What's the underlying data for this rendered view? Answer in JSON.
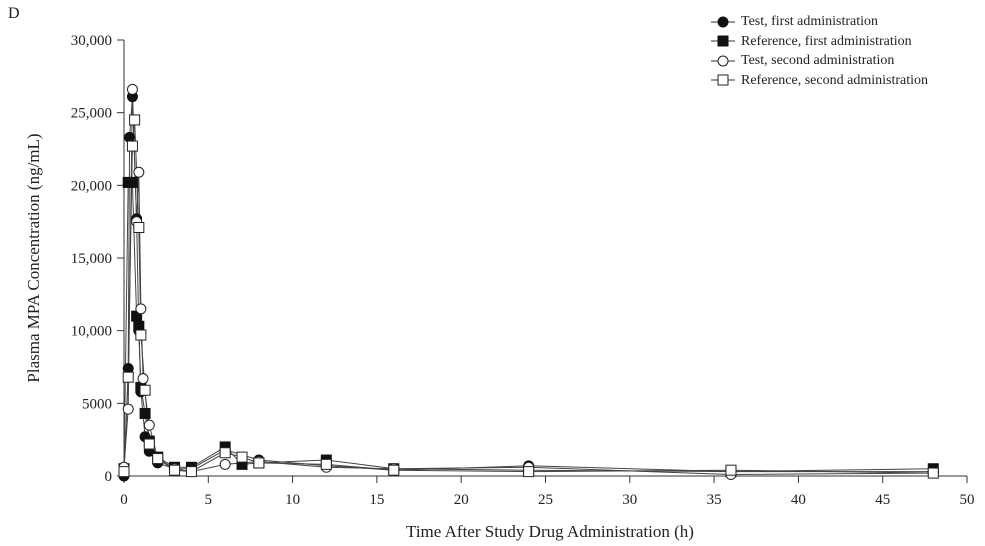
{
  "panel_label": "D",
  "chart_data": {
    "type": "line",
    "xlabel": "Time After Study Drug Administration (h)",
    "ylabel": "Plasma MPA Concentration (ng/mL)",
    "xlim": [
      0,
      50
    ],
    "ylim": [
      0,
      30000
    ],
    "x_ticks": [
      0,
      5,
      10,
      15,
      20,
      25,
      30,
      35,
      40,
      45,
      50
    ],
    "x_tick_labels": [
      "0",
      "5",
      "10",
      "15",
      "20",
      "25",
      "30",
      "35",
      "40",
      "45",
      "50"
    ],
    "y_ticks": [
      0,
      5000,
      10000,
      15000,
      20000,
      25000,
      30000
    ],
    "y_tick_labels": [
      "0",
      "5000",
      "10,000",
      "15,000",
      "20,000",
      "25,000",
      "30,000"
    ],
    "grid": false,
    "legend_position": "top-right",
    "series": [
      {
        "name": "Test, first administration",
        "marker": "circle",
        "fill": "#111111",
        "points": [
          [
            0,
            0
          ],
          [
            0.25,
            7400
          ],
          [
            0.33,
            23300
          ],
          [
            0.5,
            26100
          ],
          [
            0.75,
            17700
          ],
          [
            0.88,
            10000
          ],
          [
            1,
            5800
          ],
          [
            1.25,
            2700
          ],
          [
            1.5,
            1700
          ],
          [
            2,
            900
          ],
          [
            3,
            500
          ],
          [
            4,
            500
          ],
          [
            6,
            1800
          ],
          [
            8,
            1100
          ],
          [
            12,
            700
          ],
          [
            16,
            400
          ],
          [
            24,
            700
          ],
          [
            36,
            300
          ],
          [
            48,
            300
          ]
        ]
      },
      {
        "name": "Reference, first administration",
        "marker": "square",
        "fill": "#111111",
        "points": [
          [
            0,
            500
          ],
          [
            0.25,
            20200
          ],
          [
            0.5,
            20200
          ],
          [
            0.75,
            11000
          ],
          [
            0.88,
            10300
          ],
          [
            1,
            6100
          ],
          [
            1.25,
            4300
          ],
          [
            1.5,
            2400
          ],
          [
            2,
            1300
          ],
          [
            3,
            600
          ],
          [
            4,
            600
          ],
          [
            6,
            2000
          ],
          [
            7,
            800
          ],
          [
            8,
            900
          ],
          [
            12,
            1100
          ],
          [
            16,
            500
          ],
          [
            24,
            400
          ],
          [
            36,
            300
          ],
          [
            48,
            500
          ]
        ]
      },
      {
        "name": "Test, second administration",
        "marker": "circle",
        "fill": "#ffffff",
        "points": [
          [
            0,
            600
          ],
          [
            0.25,
            4600
          ],
          [
            0.5,
            26600
          ],
          [
            0.75,
            17500
          ],
          [
            0.88,
            20900
          ],
          [
            1,
            11500
          ],
          [
            1.13,
            6700
          ],
          [
            1.5,
            3500
          ],
          [
            2,
            1200
          ],
          [
            3,
            500
          ],
          [
            4,
            300
          ],
          [
            6,
            800
          ],
          [
            8,
            1000
          ],
          [
            12,
            600
          ],
          [
            16,
            500
          ],
          [
            24,
            600
          ],
          [
            36,
            100
          ],
          [
            48,
            200
          ]
        ]
      },
      {
        "name": "Reference, second administration",
        "marker": "square",
        "fill": "#ffffff",
        "points": [
          [
            0,
            300
          ],
          [
            0.25,
            6800
          ],
          [
            0.5,
            22700
          ],
          [
            0.63,
            24500
          ],
          [
            0.88,
            17100
          ],
          [
            1,
            9700
          ],
          [
            1.25,
            5900
          ],
          [
            1.5,
            2200
          ],
          [
            2,
            1200
          ],
          [
            3,
            400
          ],
          [
            4,
            300
          ],
          [
            6,
            1600
          ],
          [
            7,
            1300
          ],
          [
            8,
            900
          ],
          [
            12,
            800
          ],
          [
            16,
            400
          ],
          [
            24,
            300
          ],
          [
            36,
            400
          ],
          [
            48,
            200
          ]
        ]
      }
    ]
  }
}
